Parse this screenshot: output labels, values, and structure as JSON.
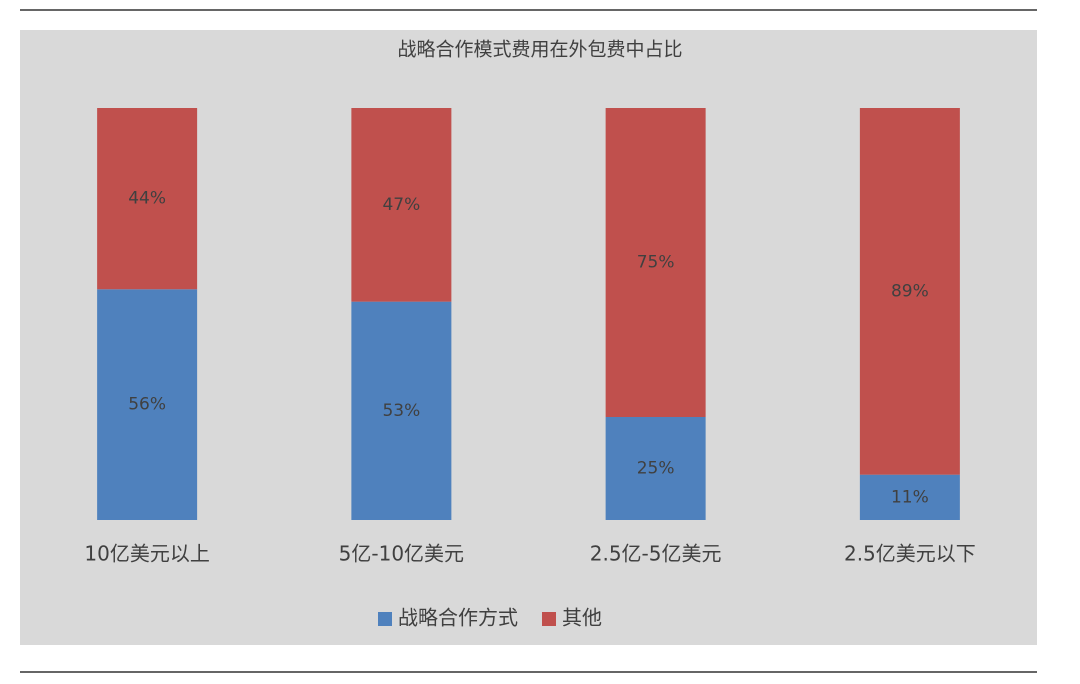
{
  "chart_data": {
    "type": "stacked_bar",
    "title": "战略合作模式费用在外包费中占比",
    "categories": [
      "10亿美元以上",
      "5亿-10亿美元",
      "2.5亿-5亿美元",
      "2.5亿美元以下"
    ],
    "series": [
      {
        "name": "战略合作方式",
        "color": "#4f81bd",
        "values": [
          56,
          53,
          25,
          11
        ],
        "value_labels": [
          "56%",
          "53%",
          "25%",
          "11%"
        ]
      },
      {
        "name": "其他",
        "color": "#c0504d",
        "values": [
          44,
          47,
          75,
          89
        ],
        "value_labels": [
          "44%",
          "47%",
          "75%",
          "89%"
        ]
      }
    ],
    "legend": "bottom"
  }
}
